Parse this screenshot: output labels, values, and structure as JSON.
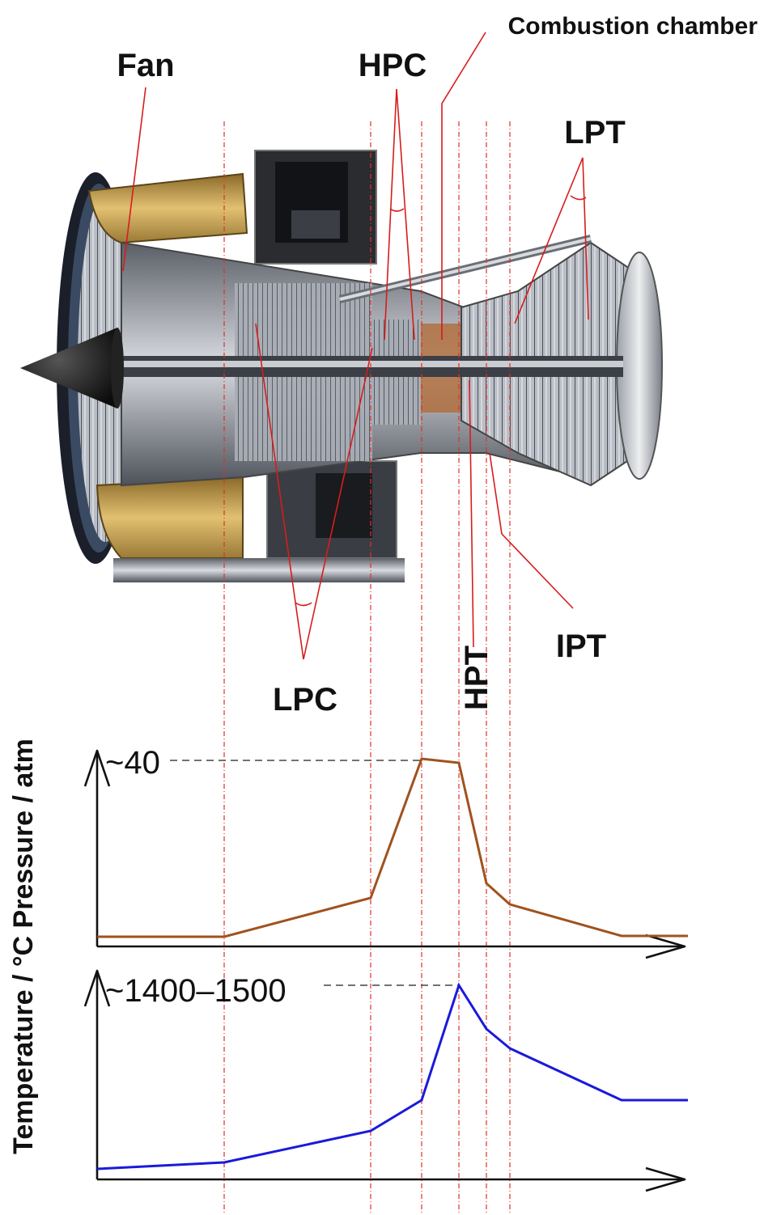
{
  "components": {
    "fan": "Fan",
    "hpc": "HPC",
    "combustion": "Combustion chamber",
    "lpt": "LPT",
    "lpc": "LPC",
    "hpt": "HPT",
    "ipt": "IPT"
  },
  "y_axis_label": "Temperature / °C  Pressure / atm",
  "pressure": {
    "peak_label": "~40",
    "line_color": "#a0521e"
  },
  "temperature": {
    "peak_label": "~1400–1500",
    "line_color": "#1a1adb"
  },
  "colors": {
    "leader": "#d81c1c",
    "section_line": "#e0302a",
    "axis": "#111111"
  },
  "icons": [
    "turbofan-engine-cutaway-illustration"
  ]
}
